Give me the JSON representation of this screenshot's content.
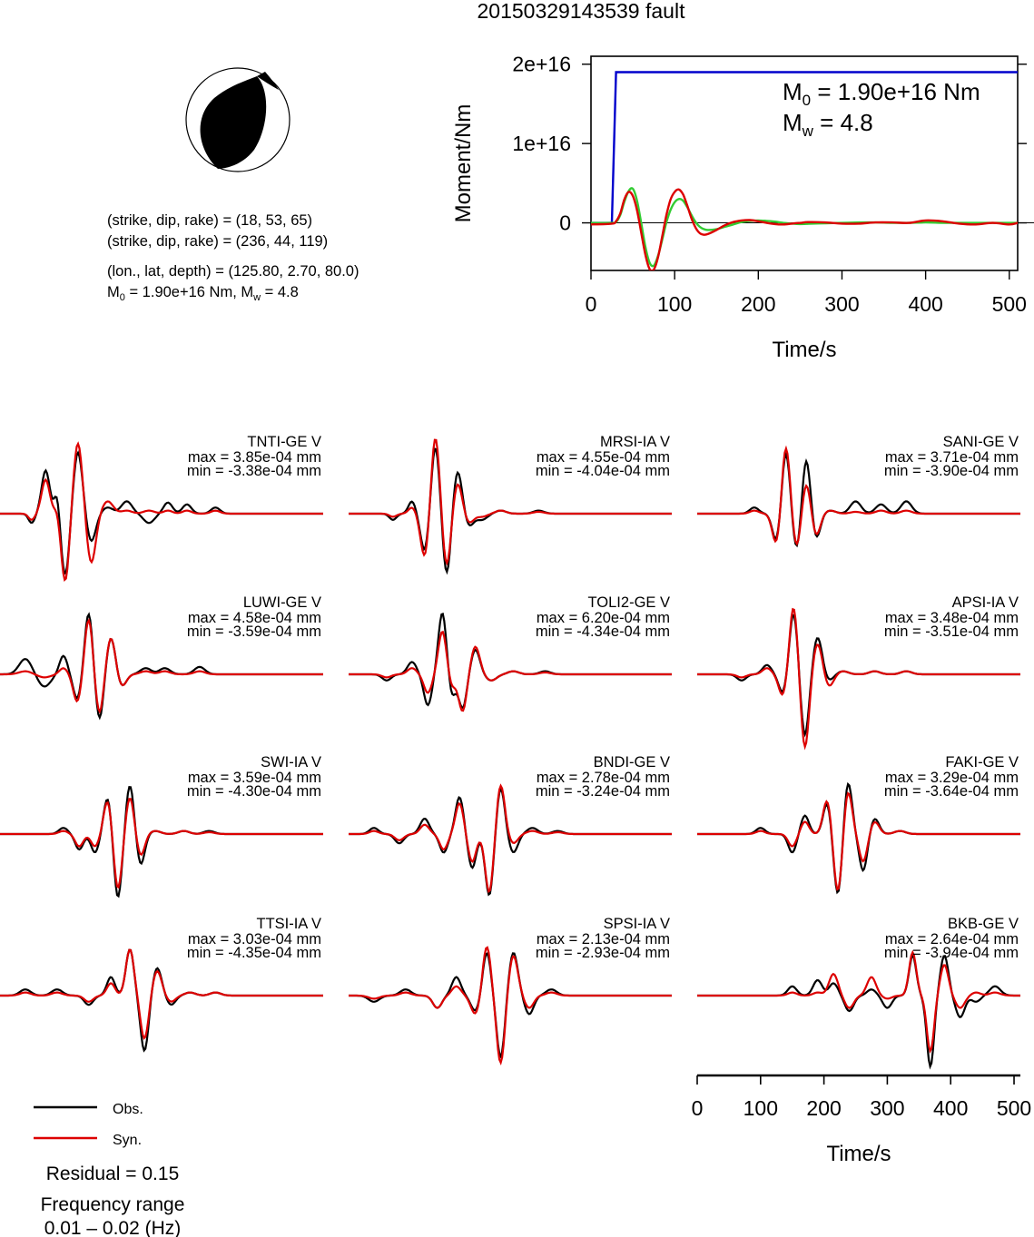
{
  "title": "20150329143539 fault",
  "mechanism": {
    "planes": [
      "(strike, dip, rake) = (18, 53, 65)",
      "(strike, dip, rake) = (236, 44, 119)"
    ],
    "location": "(lon., lat, depth) = (125.80, 2.70, 80.0)",
    "m0_prefix": "M",
    "m0_sub": "0",
    "m0_rest": " = 1.90e+16 Nm, M",
    "mw_sub": "w",
    "mw_rest": " = 4.8"
  },
  "legend": {
    "obs": "Obs.",
    "syn": "Syn."
  },
  "residual": "Residual = 0.15",
  "frequency": {
    "label": "Frequency range",
    "value": "0.01 – 0.02 (Hz)"
  },
  "colors": {
    "obs": "#000000",
    "syn": "#dd0000",
    "moment": "#0000cc",
    "stf": "#33cc33"
  },
  "chart_data": [
    {
      "type": "line",
      "title": "",
      "xlabel": "Time/s",
      "ylabel": "Moment/Nm",
      "xlim": [
        0,
        510
      ],
      "ylim": [
        -6000000000000000.0,
        2.1e+16
      ],
      "xticks": [
        0,
        100,
        200,
        300,
        400,
        500
      ],
      "yticks": [
        0,
        1e+16,
        2e+16
      ],
      "ytick_labels": [
        "0",
        "1e+16",
        "2e+16"
      ],
      "annotation": {
        "m0_main": "M",
        "m0_sub": "0",
        "m0_value": " = 1.90e+16 Nm",
        "mw_main": "M",
        "mw_sub": "w",
        "mw_value": " = 4.8"
      },
      "series": [
        {
          "color": "#0000cc",
          "x": [
            0,
            25,
            30,
            510
          ],
          "y": [
            0,
            0,
            1.9e+16,
            1.9e+16
          ]
        },
        {
          "color": "#33cc33",
          "x": [
            0,
            25,
            30,
            35,
            40,
            45,
            50,
            55,
            60,
            65,
            70,
            75,
            80,
            85,
            90,
            95,
            100,
            105,
            110,
            115,
            120,
            125,
            130,
            135,
            140,
            150,
            160,
            170,
            180,
            190,
            200,
            210,
            220,
            230,
            240,
            250,
            260,
            280,
            300,
            320,
            340,
            360,
            380,
            400,
            420,
            440,
            460,
            480,
            500,
            510
          ],
          "y": [
            0,
            0,
            100000000000000.0,
            1000000000000000.0,
            2700000000000000.0,
            4000000000000000.0,
            4300000000000000.0,
            2800000000000000.0,
            0,
            -3000000000000000.0,
            -5000000000000000.0,
            -5400000000000000.0,
            -4200000000000000.0,
            -2200000000000000.0,
            0,
            1600000000000000.0,
            2600000000000000.0,
            3000000000000000.0,
            2800000000000000.0,
            2000000000000000.0,
            1000000000000000.0,
            100000000000000.0,
            -500000000000000.0,
            -800000000000000.0,
            -900000000000000.0,
            -800000000000000.0,
            -500000000000000.0,
            -200000000000000.0,
            100000000000000.0,
            250000000000000.0,
            300000000000000.0,
            250000000000000.0,
            150000000000000.0,
            0,
            -100000000000000.0,
            -150000000000000.0,
            -120000000000000.0,
            -50000000000000.0,
            0,
            50000000000000.0,
            50000000000000.0,
            0,
            0,
            50000000000000.0,
            0,
            0,
            0,
            0,
            0,
            0
          ]
        },
        {
          "color": "#dd0000",
          "x": [
            0,
            25,
            30,
            35,
            40,
            45,
            50,
            55,
            60,
            65,
            70,
            75,
            80,
            85,
            90,
            95,
            100,
            105,
            110,
            115,
            120,
            125,
            130,
            135,
            140,
            150,
            160,
            170,
            180,
            190,
            200,
            210,
            220,
            230,
            240,
            250,
            260,
            280,
            300,
            320,
            340,
            360,
            380,
            400,
            420,
            440,
            460,
            480,
            500,
            510
          ],
          "y": [
            -200000000000000.0,
            -100000000000000.0,
            200000000000000.0,
            1200000000000000.0,
            3000000000000000.0,
            3900000000000000.0,
            3400000000000000.0,
            1600000000000000.0,
            -1200000000000000.0,
            -4000000000000000.0,
            -5800000000000000.0,
            -5900000000000000.0,
            -4400000000000000.0,
            -1800000000000000.0,
            900000000000000.0,
            2900000000000000.0,
            3900000000000000.0,
            4200000000000000.0,
            3600000000000000.0,
            2200000000000000.0,
            600000000000000.0,
            -600000000000000.0,
            -1300000000000000.0,
            -1500000000000000.0,
            -1400000000000000.0,
            -900000000000000.0,
            -300000000000000.0,
            100000000000000.0,
            300000000000000.0,
            350000000000000.0,
            200000000000000.0,
            0,
            -150000000000000.0,
            -200000000000000.0,
            -100000000000000.0,
            0,
            100000000000000.0,
            50000000000000.0,
            -100000000000000.0,
            -100000000000000.0,
            50000000000000.0,
            50000000000000.0,
            0,
            300000000000000.0,
            200000000000000.0,
            -100000000000000.0,
            -200000000000000.0,
            0,
            -200000000000000.0,
            0
          ]
        }
      ]
    },
    {
      "type": "line",
      "title": "",
      "xlabel": "Time/s",
      "xlim": [
        0,
        510
      ],
      "xticks": [
        0,
        100,
        200,
        300,
        400,
        500
      ],
      "stations": [
        {
          "name": "TNTI-GE V",
          "max": "max = 3.85e-04 mm",
          "min": "min = -3.38e-04 mm"
        },
        {
          "name": "MRSI-IA V",
          "max": "max = 4.55e-04 mm",
          "min": "min = -4.04e-04 mm"
        },
        {
          "name": "SANI-GE V",
          "max": "max = 3.71e-04 mm",
          "min": "min = -3.90e-04 mm"
        },
        {
          "name": "LUWI-GE V",
          "max": "max = 4.58e-04 mm",
          "min": "min = -3.59e-04 mm"
        },
        {
          "name": "TOLI2-GE V",
          "max": "max = 6.20e-04 mm",
          "min": "min = -4.34e-04 mm"
        },
        {
          "name": "APSI-IA V",
          "max": "max = 3.48e-04 mm",
          "min": "min = -3.51e-04 mm"
        },
        {
          "name": "SWI-IA V",
          "max": "max = 3.59e-04 mm",
          "min": "min = -4.30e-04 mm"
        },
        {
          "name": "BNDI-GE V",
          "max": "max = 2.78e-04 mm",
          "min": "min = -3.24e-04 mm"
        },
        {
          "name": "FAKI-GE V",
          "max": "max = 3.29e-04 mm",
          "min": "min = -3.64e-04 mm"
        },
        {
          "name": "TTSI-IA V",
          "max": "max = 3.03e-04 mm",
          "min": "min = -4.35e-04 mm"
        },
        {
          "name": "SPSI-IA V",
          "max": "max = 2.13e-04 mm",
          "min": "min = -2.93e-04 mm"
        },
        {
          "name": "BKB-GE V",
          "max": "max = 2.64e-04 mm",
          "min": "min = -3.94e-04 mm"
        }
      ]
    }
  ]
}
